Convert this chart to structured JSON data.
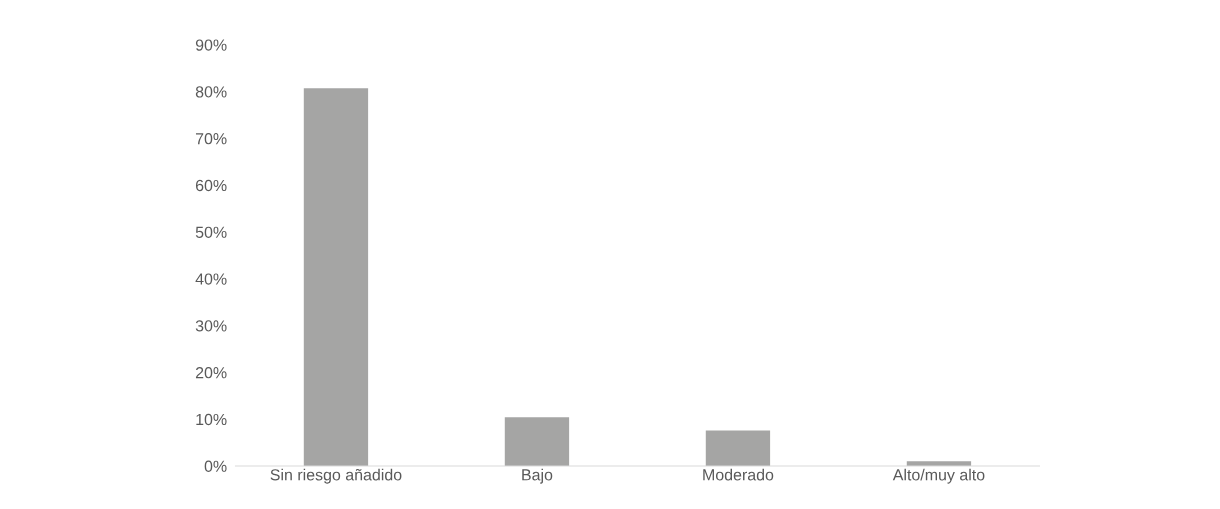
{
  "chart_data": {
    "type": "bar",
    "categories": [
      "Sin riesgo añadido",
      "Bajo",
      "Moderado",
      "Alto/muy alto"
    ],
    "values": [
      80.7,
      10.4,
      7.6,
      1.0
    ],
    "color": "#a5a5a4",
    "ylim": [
      0,
      90
    ],
    "yticks": [
      {
        "value": 0,
        "label": "0%"
      },
      {
        "value": 10,
        "label": "10%"
      },
      {
        "value": 20,
        "label": "20%"
      },
      {
        "value": 30,
        "label": "30%"
      },
      {
        "value": 40,
        "label": "40%"
      },
      {
        "value": 50,
        "label": "50%"
      },
      {
        "value": 60,
        "label": "60%"
      },
      {
        "value": 70,
        "label": "70%"
      },
      {
        "value": 80,
        "label": "80%"
      },
      {
        "value": 90,
        "label": "90%"
      }
    ],
    "grid": false
  }
}
